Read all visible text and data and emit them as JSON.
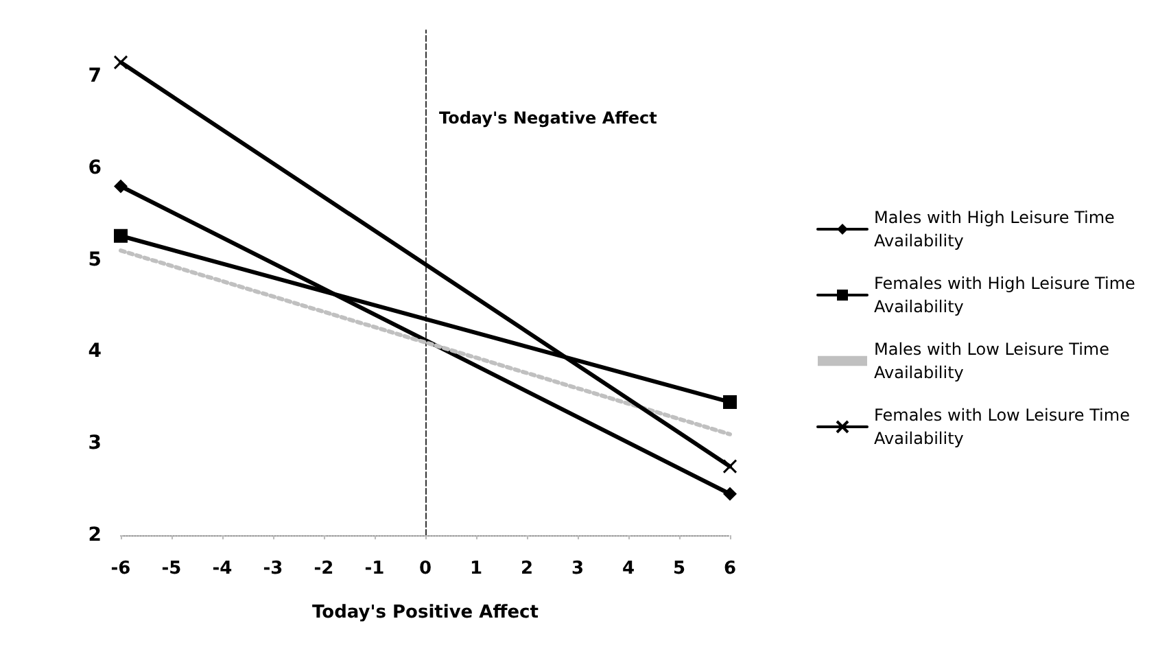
{
  "chart_data": {
    "type": "line",
    "xlabel": "Today's Positive Affect",
    "ylabel": "Today's Negative Affect",
    "x": [
      -6,
      6
    ],
    "series": [
      {
        "name": "Males with High Leisure Time Availability",
        "color": "#000000",
        "marker": "diamond",
        "values": [
          5.8,
          2.45
        ]
      },
      {
        "name": "Females with High Leisure Time Availability",
        "color": "#000000",
        "marker": "square",
        "values": [
          5.26,
          3.45
        ]
      },
      {
        "name": "Males with Low Leisure Time Availability",
        "color": "#c0c0c0",
        "line_style": "dotted",
        "values": [
          5.1,
          3.1
        ]
      },
      {
        "name": "Females with Low Leisure Time Availability",
        "color": "#000000",
        "marker": "cross",
        "values": [
          7.15,
          2.75
        ]
      }
    ],
    "xlim": [
      -6,
      6
    ],
    "xticks": [
      -6,
      -5,
      -4,
      -3,
      -2,
      -1,
      0,
      1,
      2,
      3,
      4,
      5,
      6
    ],
    "ylim": [
      2,
      7.5
    ],
    "yticks": [
      2,
      3,
      4,
      5,
      6,
      7
    ],
    "legend": "right"
  }
}
